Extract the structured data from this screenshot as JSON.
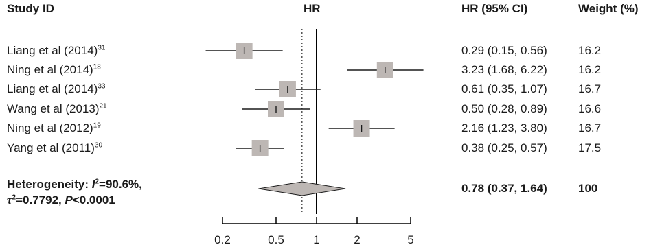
{
  "headers": {
    "study_id": "Study ID",
    "hr": "HR",
    "hr_ci": "HR (95% CI)",
    "weight": "Weight (%)"
  },
  "studies": [
    {
      "name": "Liang et al (2014)",
      "ref": "31",
      "hr": 0.29,
      "lo": 0.15,
      "hi": 0.56,
      "ci_text": "0.29 (0.15, 0.56)",
      "weight": "16.2"
    },
    {
      "name": "Ning et al (2014)",
      "ref": "18",
      "hr": 3.23,
      "lo": 1.68,
      "hi": 6.22,
      "ci_text": "3.23 (1.68, 6.22)",
      "weight": "16.2"
    },
    {
      "name": "Liang et al (2014)",
      "ref": "33",
      "hr": 0.61,
      "lo": 0.35,
      "hi": 1.07,
      "ci_text": "0.61 (0.35, 1.07)",
      "weight": "16.7"
    },
    {
      "name": "Wang et al (2013)",
      "ref": "21",
      "hr": 0.5,
      "lo": 0.28,
      "hi": 0.89,
      "ci_text": "0.50 (0.28, 0.89)",
      "weight": "16.6"
    },
    {
      "name": "Ning et al (2012)",
      "ref": "19",
      "hr": 2.16,
      "lo": 1.23,
      "hi": 3.8,
      "ci_text": "2.16 (1.23, 3.80)",
      "weight": "16.7"
    },
    {
      "name": "Yang et al (2011)",
      "ref": "30",
      "hr": 0.38,
      "lo": 0.25,
      "hi": 0.57,
      "ci_text": "0.38 (0.25, 0.57)",
      "weight": "17.5"
    }
  ],
  "pooled": {
    "label_line1_prefix": "Heterogeneity: ",
    "label_I": "I",
    "label_line1_suffix": "=90.6%,",
    "label_tau": "τ",
    "label_line2_suffix": "=0.7792, ",
    "label_P": "P",
    "label_P_suffix": "<0.0001",
    "hr": 0.78,
    "lo": 0.37,
    "hi": 1.64,
    "ci_text": "0.78 (0.37, 1.64)",
    "weight": "100"
  },
  "chart_data": {
    "type": "forest",
    "x_scale": "log",
    "xlim": [
      0.2,
      5
    ],
    "ticks": [
      0.2,
      0.5,
      1,
      2,
      5
    ],
    "tick_labels": [
      "0.2",
      "0.5",
      "1",
      "2",
      "5"
    ],
    "reference_line": 1,
    "pooled_reference_line": 0.78,
    "box_color": "#bdb7b4",
    "diamond_color": "#bdb7b4",
    "series": [
      {
        "x": 0.29,
        "lo": 0.15,
        "hi": 0.56
      },
      {
        "x": 3.23,
        "lo": 1.68,
        "hi": 6.22
      },
      {
        "x": 0.61,
        "lo": 0.35,
        "hi": 1.07
      },
      {
        "x": 0.5,
        "lo": 0.28,
        "hi": 0.89
      },
      {
        "x": 2.16,
        "lo": 1.23,
        "hi": 3.8
      },
      {
        "x": 0.38,
        "lo": 0.25,
        "hi": 0.57
      }
    ]
  }
}
